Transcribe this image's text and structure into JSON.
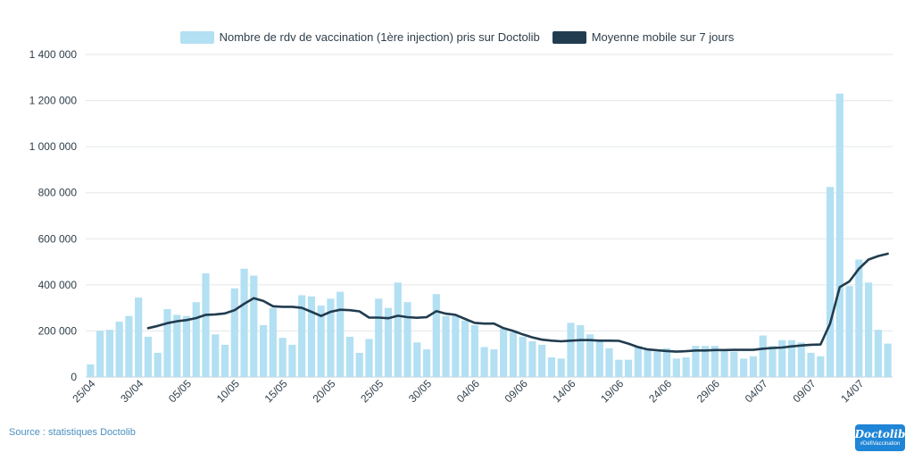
{
  "chart_data": {
    "type": "bar",
    "title": "",
    "xlabel": "",
    "ylabel": "",
    "ylim": [
      0,
      1400000
    ],
    "yticks": [
      0,
      200000,
      400000,
      600000,
      800000,
      1000000,
      1200000,
      1400000
    ],
    "ytick_labels": [
      "0",
      "200 000",
      "400 000",
      "600 000",
      "800 000",
      "1 000 000",
      "1 200 000",
      "1 400 000"
    ],
    "grid": true,
    "legend_position": "top-center",
    "categories": [
      "25/04",
      "26/04",
      "27/04",
      "28/04",
      "29/04",
      "30/04",
      "01/05",
      "02/05",
      "03/05",
      "04/05",
      "05/05",
      "06/05",
      "07/05",
      "08/05",
      "09/05",
      "10/05",
      "11/05",
      "12/05",
      "13/05",
      "14/05",
      "15/05",
      "16/05",
      "17/05",
      "18/05",
      "19/05",
      "20/05",
      "21/05",
      "22/05",
      "23/05",
      "24/05",
      "25/05",
      "26/05",
      "27/05",
      "28/05",
      "29/05",
      "30/05",
      "31/05",
      "01/06",
      "02/06",
      "03/06",
      "04/06",
      "05/06",
      "06/06",
      "07/06",
      "08/06",
      "09/06",
      "10/06",
      "11/06",
      "12/06",
      "13/06",
      "14/06",
      "15/06",
      "16/06",
      "17/06",
      "18/06",
      "19/06",
      "20/06",
      "21/06",
      "22/06",
      "23/06",
      "24/06",
      "25/06",
      "26/06",
      "27/06",
      "28/06",
      "29/06",
      "30/06",
      "01/07",
      "02/07",
      "03/07",
      "04/07",
      "05/07",
      "06/07",
      "07/07",
      "08/07",
      "09/07",
      "10/07",
      "11/07",
      "12/07",
      "13/07",
      "14/07",
      "15/07",
      "16/07",
      "17/07"
    ],
    "x_tick_labels": [
      "25/04",
      "30/04",
      "05/05",
      "10/05",
      "15/05",
      "20/05",
      "25/05",
      "30/05",
      "04/06",
      "09/06",
      "14/06",
      "19/06",
      "24/06",
      "29/06",
      "04/07",
      "09/07",
      "14/07"
    ],
    "series": [
      {
        "name": "Nombre de rdv de vaccination (1ère injection) pris sur Doctolib",
        "type": "bar",
        "color": "#b3e0f2",
        "values": [
          55000,
          200000,
          205000,
          240000,
          265000,
          345000,
          175000,
          105000,
          295000,
          270000,
          265000,
          325000,
          450000,
          185000,
          140000,
          385000,
          470000,
          440000,
          225000,
          300000,
          170000,
          140000,
          355000,
          350000,
          310000,
          340000,
          370000,
          175000,
          105000,
          165000,
          340000,
          300000,
          410000,
          325000,
          150000,
          120000,
          360000,
          265000,
          265000,
          245000,
          225000,
          130000,
          120000,
          210000,
          195000,
          175000,
          155000,
          140000,
          85000,
          80000,
          235000,
          225000,
          185000,
          160000,
          125000,
          75000,
          75000,
          135000,
          120000,
          110000,
          125000,
          80000,
          85000,
          135000,
          135000,
          135000,
          120000,
          110000,
          80000,
          90000,
          180000,
          135000,
          160000,
          160000,
          150000,
          105000,
          90000,
          825000,
          1230000,
          395000,
          510000,
          410000,
          205000,
          145000
        ]
      },
      {
        "name": "Moyenne mobile sur 7 jours",
        "type": "line",
        "color": "#213c4f",
        "values": [
          null,
          null,
          null,
          null,
          null,
          null,
          212000,
          222000,
          234000,
          242000,
          247000,
          256000,
          270000,
          272000,
          276000,
          290000,
          318000,
          342000,
          330000,
          307000,
          305000,
          305000,
          300000,
          283000,
          265000,
          283000,
          292000,
          290000,
          285000,
          258000,
          258000,
          255000,
          266000,
          260000,
          257000,
          260000,
          286000,
          275000,
          270000,
          252000,
          235000,
          232000,
          232000,
          212000,
          200000,
          185000,
          172000,
          162000,
          158000,
          155000,
          158000,
          160000,
          160000,
          158000,
          158000,
          157000,
          145000,
          130000,
          120000,
          116000,
          113000,
          110000,
          112000,
          115000,
          115000,
          117000,
          117000,
          118000,
          118000,
          118000,
          123000,
          126000,
          128000,
          133000,
          137000,
          140000,
          141000,
          232000,
          390000,
          415000,
          470000,
          510000,
          525000,
          535000
        ]
      }
    ]
  },
  "source_text": "Source : statistiques Doctolib",
  "logo": {
    "name": "Doctolib",
    "tag": "#DéfiVaccination"
  },
  "colors": {
    "grid": "#e3e6e9",
    "axis_text": "#2e3e4a",
    "source": "#4a8fbf",
    "logo_bg": "#1f85d6"
  }
}
